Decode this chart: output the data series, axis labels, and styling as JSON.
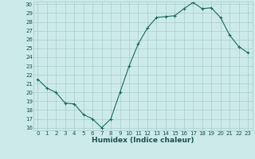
{
  "x": [
    0,
    1,
    2,
    3,
    4,
    5,
    6,
    7,
    8,
    9,
    10,
    11,
    12,
    13,
    14,
    15,
    16,
    17,
    18,
    19,
    20,
    21,
    22,
    23
  ],
  "y": [
    21.5,
    20.5,
    20.0,
    18.8,
    18.7,
    17.5,
    17.0,
    16.0,
    17.0,
    20.0,
    23.0,
    25.5,
    27.3,
    28.5,
    28.6,
    28.7,
    29.5,
    30.2,
    29.5,
    29.6,
    28.5,
    26.5,
    25.2,
    24.5
  ],
  "xlabel": "Humidex (Indice chaleur)",
  "ylim": [
    16,
    30
  ],
  "xlim": [
    -0.5,
    23.5
  ],
  "yticks": [
    16,
    17,
    18,
    19,
    20,
    21,
    22,
    23,
    24,
    25,
    26,
    27,
    28,
    29,
    30
  ],
  "xticks": [
    0,
    1,
    2,
    3,
    4,
    5,
    6,
    7,
    8,
    9,
    10,
    11,
    12,
    13,
    14,
    15,
    16,
    17,
    18,
    19,
    20,
    21,
    22,
    23
  ],
  "line_color": "#1a6b5a",
  "marker": "+",
  "bg_color": "#cdeaea",
  "grid_color": "#a8cccc",
  "xlabel_color": "#1a5050",
  "tick_color": "#1a5050",
  "tick_fontsize": 5.0,
  "xlabel_fontsize": 6.5
}
